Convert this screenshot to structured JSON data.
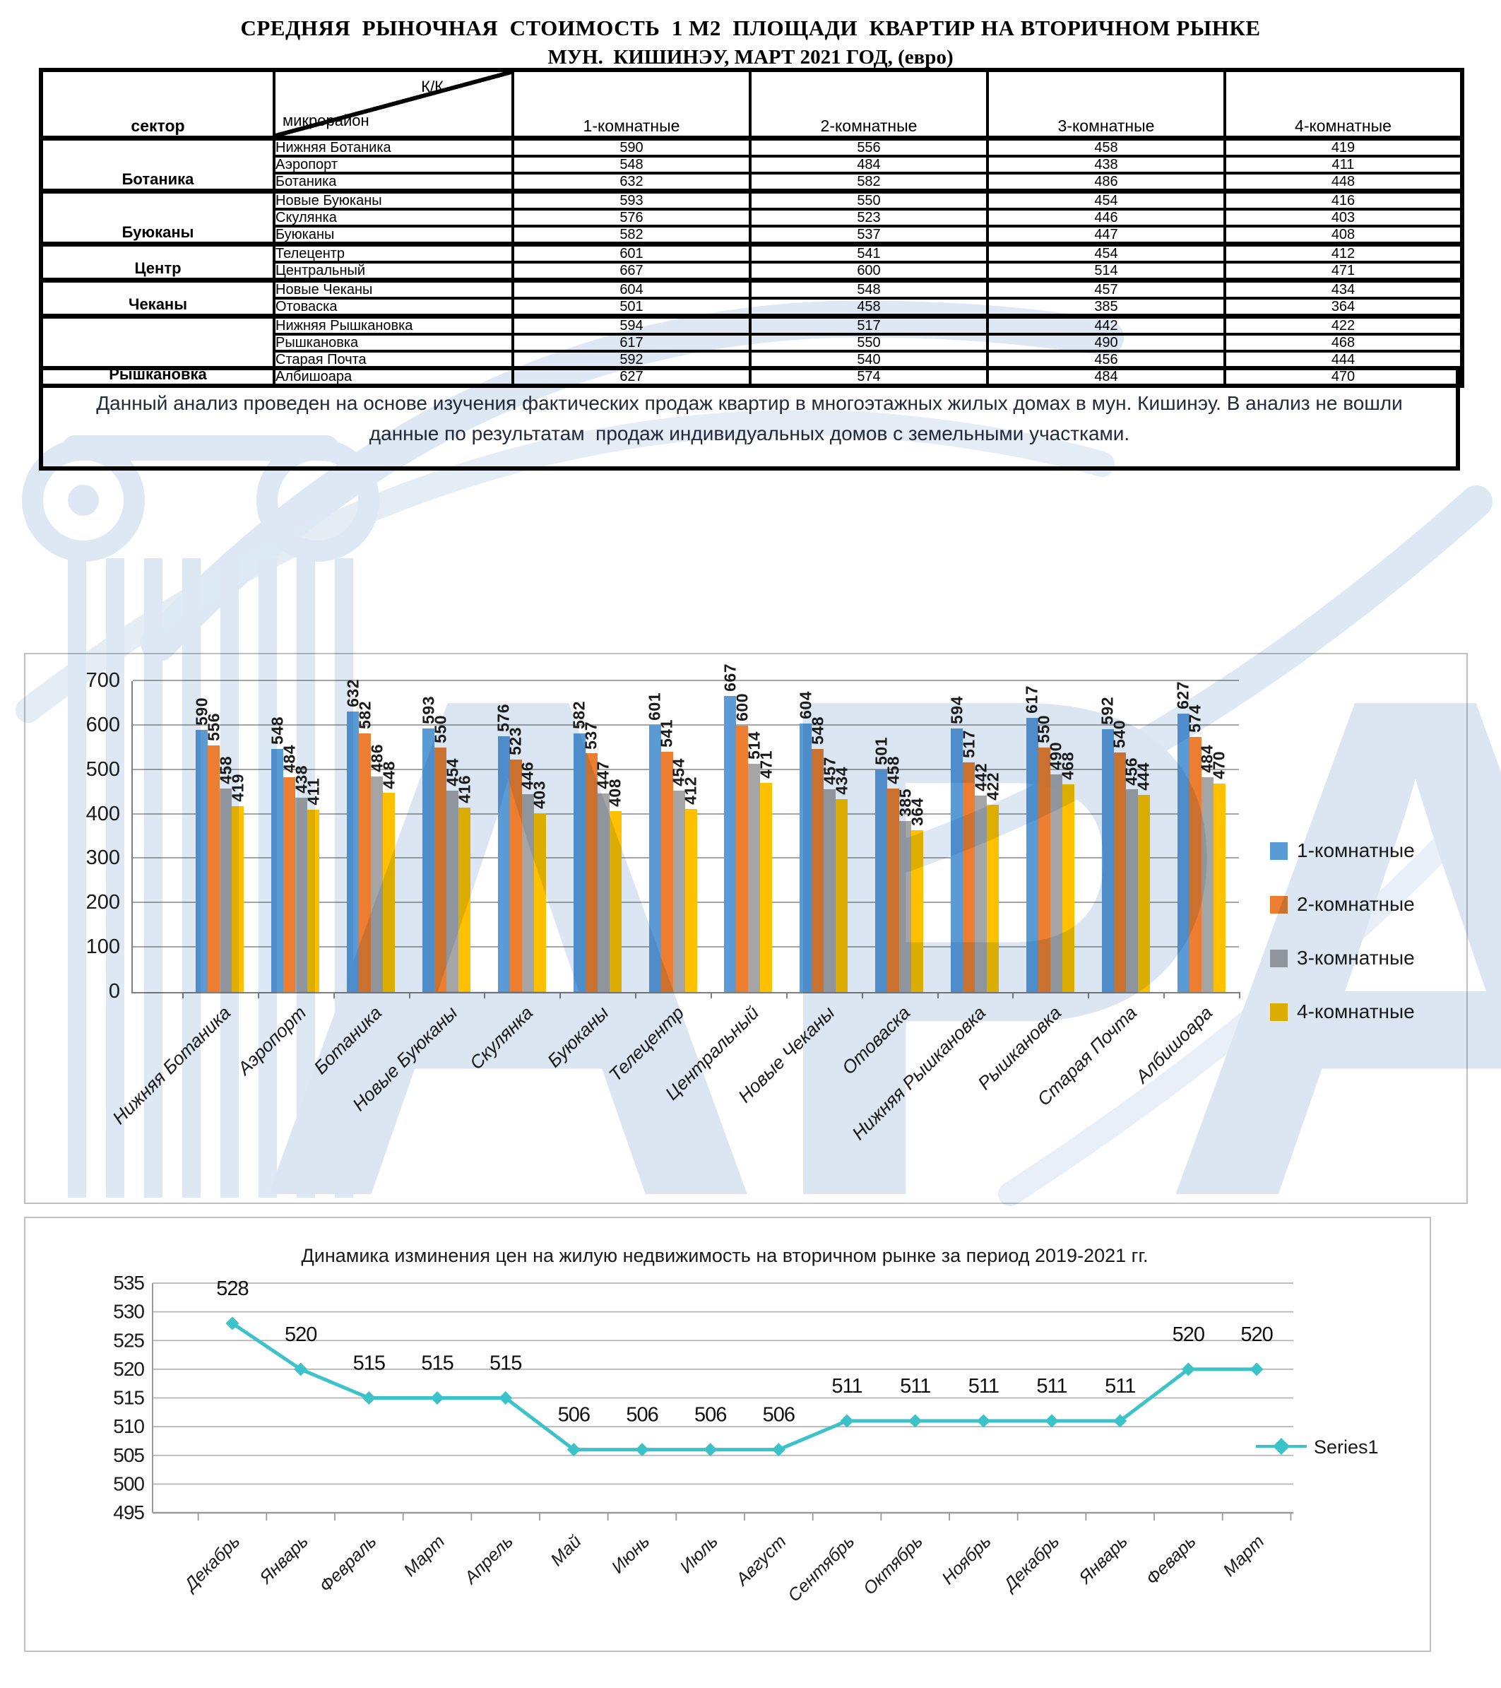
{
  "page": {
    "title_line1": "СРЕДНЯЯ  РЫНОЧНАЯ  СТОИМОСТЬ  1 М2  ПЛОЩАДИ  КВАРТИР НА ВТОРИЧНОМ РЫНКЕ",
    "title_line2": "МУН.  КИШИНЭУ, МАРТ 2021 ГОД, (евро)"
  },
  "table": {
    "col_sector": "сектор",
    "corner": {
      "top": "К/К",
      "left": "микрорайон"
    },
    "columns": [
      "1-комнатные",
      "2-комнатные",
      "3-комнатные",
      "4-комнатные"
    ],
    "sectors": [
      {
        "name": "Ботаника",
        "rows": [
          {
            "district": "Нижняя Ботаника",
            "values": [
              590,
              556,
              458,
              419
            ]
          },
          {
            "district": "Аэропорт",
            "values": [
              548,
              484,
              438,
              411
            ]
          },
          {
            "district": "Ботаника",
            "values": [
              632,
              582,
              486,
              448
            ]
          }
        ]
      },
      {
        "name": "Буюканы",
        "rows": [
          {
            "district": "Новые Буюканы",
            "values": [
              593,
              550,
              454,
              416
            ]
          },
          {
            "district": "Скулянка",
            "values": [
              576,
              523,
              446,
              403
            ]
          },
          {
            "district": "Буюканы",
            "values": [
              582,
              537,
              447,
              408
            ]
          }
        ]
      },
      {
        "name": "Центр",
        "rows": [
          {
            "district": "Телецентр",
            "values": [
              601,
              541,
              454,
              412
            ]
          },
          {
            "district": "Центральный",
            "values": [
              667,
              600,
              514,
              471
            ]
          }
        ]
      },
      {
        "name": "Чеканы",
        "rows": [
          {
            "district": "Новые Чеканы",
            "values": [
              604,
              548,
              457,
              434
            ]
          },
          {
            "district": "Отоваска",
            "values": [
              501,
              458,
              385,
              364
            ]
          }
        ]
      },
      {
        "name": "Рышкановка",
        "rows": [
          {
            "district": "Нижняя Рышкановка",
            "values": [
              594,
              517,
              442,
              422
            ]
          },
          {
            "district": "Рышкановка",
            "values": [
              617,
              550,
              490,
              468
            ]
          },
          {
            "district": "Старая Почта",
            "values": [
              592,
              540,
              456,
              444
            ]
          },
          {
            "district": "Албишоара",
            "values": [
              627,
              574,
              484,
              470
            ]
          }
        ]
      }
    ]
  },
  "note": {
    "text": "Данный анализ проведен на основе изучения фактических продаж квартир в многоэтажных жилых домах в мун. Кишинэу. В анализ не вошли данные по результатам  продаж индивидуальных домов с земельными участками."
  },
  "watermark": {
    "letters": "АРА",
    "color": "#c3d6ea"
  },
  "chart_data": [
    {
      "type": "bar",
      "categories": [
        "Нижняя Ботаника",
        "Аэропорт",
        "Ботаника",
        "Новые Буюканы",
        "Скулянка",
        "Буюканы",
        "Телецентр",
        "Центральный",
        "Новые Чеканы",
        "Отоваска",
        "Нижняя Рышкановка",
        "Рышкановка",
        "Старая Почта",
        "Албишоара"
      ],
      "series": [
        {
          "name": "1-комнатные",
          "color": "#5B9BD5",
          "values": [
            590,
            548,
            632,
            593,
            576,
            582,
            601,
            667,
            604,
            501,
            594,
            617,
            592,
            627
          ]
        },
        {
          "name": "2-комнатные",
          "color": "#ED7D31",
          "values": [
            556,
            484,
            582,
            550,
            523,
            537,
            541,
            600,
            548,
            458,
            517,
            550,
            540,
            574
          ]
        },
        {
          "name": "3-комнатные",
          "color": "#A5A5A5",
          "values": [
            458,
            438,
            486,
            454,
            446,
            447,
            454,
            514,
            457,
            385,
            442,
            490,
            456,
            484
          ]
        },
        {
          "name": "4-комнатные",
          "color": "#FFC000",
          "values": [
            419,
            411,
            448,
            416,
            403,
            408,
            412,
            471,
            434,
            364,
            422,
            468,
            444,
            470
          ]
        }
      ],
      "ylim": [
        0,
        700
      ],
      "ytick_step": 100,
      "grid": true,
      "legend_position": "right",
      "value_labels": "rotated-vertical"
    },
    {
      "type": "line",
      "title": "Динамика изминения цен на жилую недвижимость на вторичном рынке за период 2019-2021 гг.",
      "categories": [
        "Декабрь",
        "Январь",
        "Февраль",
        "Март",
        "Апрель",
        "Май",
        "Июнь",
        "Июль",
        "Август",
        "Сентябрь",
        "Октябрь",
        "Ноябрь",
        "Декабрь",
        "Январь",
        "Феварь",
        "Март"
      ],
      "series": [
        {
          "name": "Series1",
          "color": "#3BC3C9",
          "values": [
            528,
            520,
            515,
            515,
            515,
            506,
            506,
            506,
            506,
            511,
            511,
            511,
            511,
            511,
            520,
            520
          ]
        }
      ],
      "ylim": [
        495,
        535
      ],
      "ytick_step": 5,
      "grid": true,
      "marker": "diamond",
      "legend_position": "right",
      "value_labels": "above"
    }
  ]
}
